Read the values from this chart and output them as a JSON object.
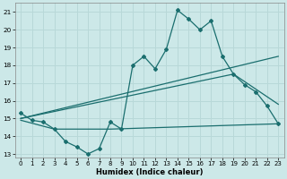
{
  "xlabel": "Humidex (Indice chaleur)",
  "background_color": "#cce8e8",
  "line_color": "#1a6e6e",
  "grid_color": "#b8d8d8",
  "xlim": [
    -0.5,
    23.5
  ],
  "ylim": [
    12.8,
    21.5
  ],
  "yticks": [
    13,
    14,
    15,
    16,
    17,
    18,
    19,
    20,
    21
  ],
  "xticks": [
    0,
    1,
    2,
    3,
    4,
    5,
    6,
    7,
    8,
    9,
    10,
    11,
    12,
    13,
    14,
    15,
    16,
    17,
    18,
    19,
    20,
    21,
    22,
    23
  ],
  "series1_x": [
    0,
    1,
    2,
    3,
    4,
    5,
    6,
    7,
    8,
    9,
    10,
    11,
    12,
    13,
    14,
    15,
    16,
    17,
    18,
    19,
    20,
    21,
    22,
    23
  ],
  "series1_y": [
    15.3,
    14.9,
    14.8,
    14.4,
    13.7,
    13.4,
    13.0,
    13.3,
    14.8,
    14.4,
    18.0,
    18.5,
    17.8,
    18.9,
    21.1,
    20.6,
    20.0,
    20.5,
    18.5,
    17.5,
    16.9,
    16.5,
    15.7,
    14.7
  ],
  "line2_x": [
    0,
    23
  ],
  "line2_y": [
    15.0,
    18.5
  ],
  "line3_x": [
    0,
    19,
    23
  ],
  "line3_y": [
    15.0,
    17.5,
    15.8
  ],
  "line4_x": [
    0,
    3,
    8,
    23
  ],
  "line4_y": [
    14.9,
    14.4,
    14.4,
    14.7
  ]
}
